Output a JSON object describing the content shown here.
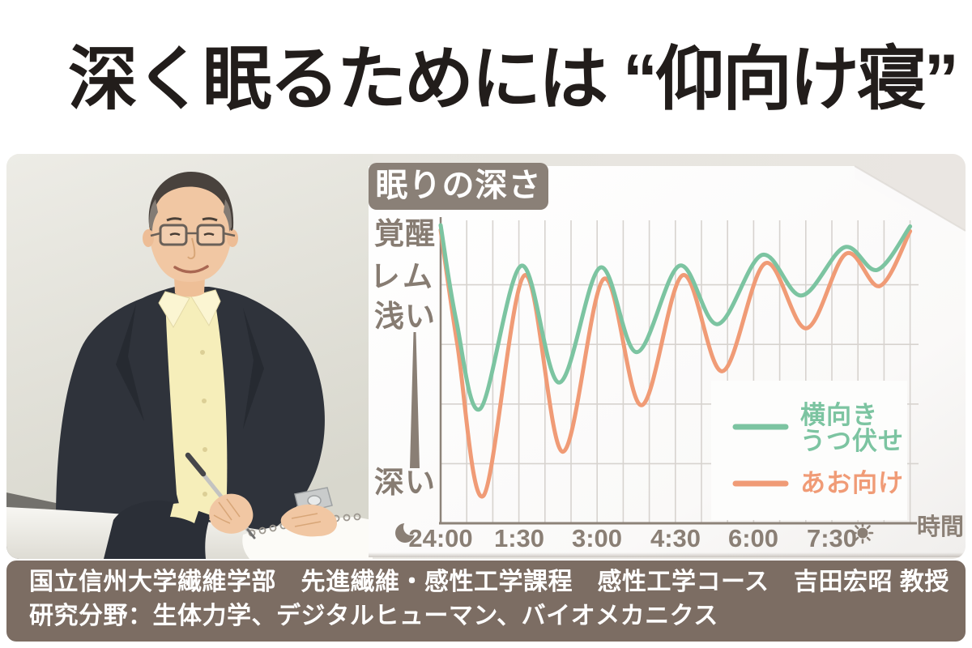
{
  "page": {
    "title": "深く眠るためには “仰向け寝”"
  },
  "chart": {
    "badge": "眠りの深さ",
    "y_labels": [
      "覚醒",
      "レム",
      "浅い",
      "深い"
    ],
    "x_ticks": [
      "24:00",
      "1:30",
      "3:00",
      "4:30",
      "6:00",
      "7:30"
    ],
    "x_unit": "時間",
    "legend": {
      "series1_line1": "横向き",
      "series1_line2": "うつ伏せ",
      "series2_label": "あお向け"
    }
  },
  "chart_data": {
    "type": "line",
    "title": "眠りの深さ",
    "xlabel": "時間",
    "ylabel": "眠りの深さ（覚醒〜深い）",
    "x_ticks": [
      "24:00",
      "1:30",
      "3:00",
      "4:30",
      "6:00",
      "7:30"
    ],
    "x_tick_hours": [
      0,
      1.5,
      3.0,
      4.5,
      6.0,
      7.5
    ],
    "x_range_hours": [
      0,
      9.0
    ],
    "grid": true,
    "minor_gridline_every_hours": 0.5,
    "y_axis": {
      "depth_range": [
        0,
        5
      ],
      "gridline_depths": [
        1,
        2,
        3,
        4
      ],
      "labels": [
        {
          "text": "覚醒",
          "depth": 0.15
        },
        {
          "text": "レム",
          "depth": 0.9
        },
        {
          "text": "浅い",
          "depth": 1.55
        },
        {
          "text": "深い",
          "depth": 4.35
        }
      ]
    },
    "legend_position": "lower right",
    "annotations": {
      "axis_start_icon": "moon",
      "axis_end_icon": "sun"
    },
    "series": [
      {
        "name": "横向き・うつ伏せ",
        "color": "#7cc4a1",
        "points": [
          [
            0.0,
            0.0
          ],
          [
            0.3,
            1.6
          ],
          [
            0.76,
            3.08
          ],
          [
            1.55,
            0.68
          ],
          [
            2.27,
            2.64
          ],
          [
            3.06,
            0.71
          ],
          [
            3.76,
            2.13
          ],
          [
            4.58,
            0.68
          ],
          [
            5.31,
            1.66
          ],
          [
            6.16,
            0.5
          ],
          [
            6.92,
            1.18
          ],
          [
            7.74,
            0.37
          ],
          [
            8.37,
            0.75
          ],
          [
            9.0,
            0.02
          ]
        ]
      },
      {
        "name": "あお向け",
        "color": "#f09b76",
        "points": [
          [
            0.0,
            0.08
          ],
          [
            0.32,
            2.0
          ],
          [
            0.82,
            4.54
          ],
          [
            1.61,
            0.84
          ],
          [
            2.34,
            3.8
          ],
          [
            3.13,
            0.9
          ],
          [
            3.85,
            3.02
          ],
          [
            4.64,
            0.84
          ],
          [
            5.4,
            2.45
          ],
          [
            6.22,
            0.64
          ],
          [
            7.01,
            1.73
          ],
          [
            7.77,
            0.48
          ],
          [
            8.42,
            1.02
          ],
          [
            9.0,
            0.1
          ]
        ]
      }
    ]
  },
  "footer": {
    "line1": "国立信州大学繊維学部　先進繊維・感性工学課程　感性工学コース　吉田宏昭 教授",
    "line2": "研究分野：生体力学、デジタルヒューマン、バイオメカニクス"
  },
  "colors": {
    "series_side_prone": "#7cc4a1",
    "series_supine": "#f09b76",
    "axis": "#8d8379",
    "grid": "#d7d3cf",
    "label": "#8a7f75",
    "badge_bg": "#8a8077",
    "footer_bg": "#7c6d63",
    "title_text": "#221d1b",
    "paper": "#fdfdfc",
    "band_bg": "#e9e6e1"
  }
}
